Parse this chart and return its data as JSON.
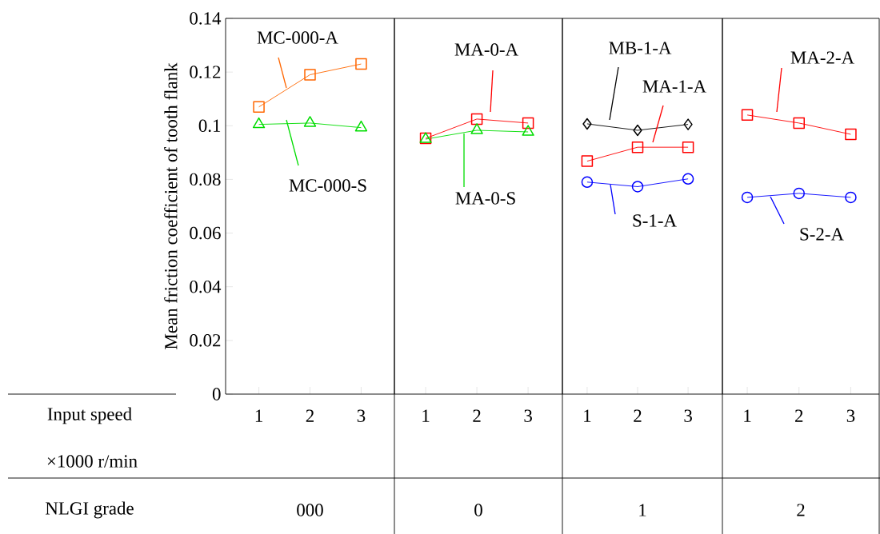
{
  "chart_data": [
    {
      "type": "line",
      "categories": [
        "1",
        "2",
        "3"
      ],
      "xlabel": "000",
      "ylabel": "Mean friction coefficient of tooth flank",
      "ylim": [
        0,
        0.14
      ],
      "yticks": [
        0,
        0.02,
        0.04,
        0.06,
        0.08,
        0.1,
        0.12,
        0.14
      ],
      "annotations": [
        "Input speed",
        "×1000 r/min",
        "NLGI grade"
      ],
      "series": [
        {
          "name": "MC-000-A",
          "color": "#ff6600",
          "marker": "square",
          "values": [
            0.107,
            0.119,
            0.123
          ]
        },
        {
          "name": "MC-000-S",
          "color": "#00dd00",
          "marker": "triangle",
          "values": [
            0.1005,
            0.101,
            0.0993
          ]
        }
      ]
    },
    {
      "type": "line",
      "categories": [
        "1",
        "2",
        "3"
      ],
      "xlabel": "0",
      "ylim": [
        0,
        0.14
      ],
      "tick_labels": "x",
      "series": [
        {
          "name": "MA-0-A",
          "color": "#ff0000",
          "marker": "square",
          "values": [
            0.0953,
            0.1025,
            0.101
          ]
        },
        {
          "name": "MA-0-S",
          "color": "#00dd00",
          "marker": "triangle",
          "values": [
            0.095,
            0.0983,
            0.0977
          ]
        }
      ]
    },
    {
      "type": "line",
      "categories": [
        "1",
        "2",
        "3"
      ],
      "xlabel": "1",
      "ylim": [
        0,
        0.14
      ],
      "tick_labels": "x",
      "series": [
        {
          "name": "MB-1-A",
          "color": "#000000",
          "marker": "diamond",
          "values": [
            0.1007,
            0.0983,
            0.1005
          ]
        },
        {
          "name": "MA-1-A",
          "color": "#ff0000",
          "marker": "square",
          "values": [
            0.0868,
            0.092,
            0.092
          ]
        },
        {
          "name": "S-1-A",
          "color": "#0000ff",
          "marker": "circle",
          "values": [
            0.079,
            0.0773,
            0.0802
          ]
        }
      ]
    },
    {
      "type": "line",
      "categories": [
        "1",
        "2",
        "3"
      ],
      "xlabel": "2",
      "ylim": [
        0,
        0.14
      ],
      "tick_labels": "x",
      "series": [
        {
          "name": "MA-2-A",
          "color": "#ff0000",
          "marker": "square",
          "values": [
            0.104,
            0.101,
            0.0968
          ]
        },
        {
          "name": "S-2-A",
          "color": "#0000ff",
          "marker": "circle",
          "values": [
            0.0733,
            0.0748,
            0.0733
          ]
        }
      ]
    }
  ]
}
